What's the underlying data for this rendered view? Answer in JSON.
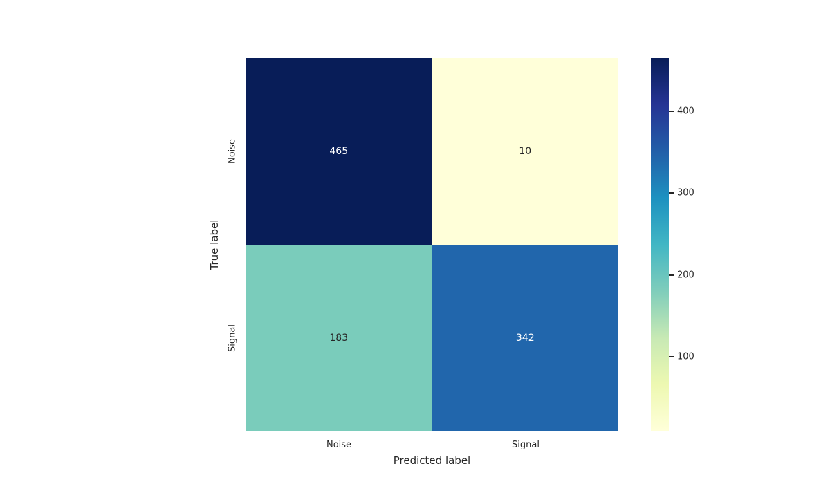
{
  "chart_data": {
    "type": "heatmap",
    "title": "",
    "xlabel": "Predicted label",
    "ylabel": "True label",
    "x_categories": [
      "Noise",
      "Signal"
    ],
    "y_categories": [
      "Noise",
      "Signal"
    ],
    "values": [
      [
        465,
        10
      ],
      [
        183,
        342
      ]
    ],
    "cells": [
      {
        "row": "Noise",
        "col": "Noise",
        "label": "465",
        "color": "#081d58",
        "text_color": "#ffffff"
      },
      {
        "row": "Noise",
        "col": "Signal",
        "label": "10",
        "color": "#ffffd9",
        "text_color": "#262626"
      },
      {
        "row": "Signal",
        "col": "Noise",
        "label": "183",
        "color": "#7accbb",
        "text_color": "#262626"
      },
      {
        "row": "Signal",
        "col": "Signal",
        "label": "342",
        "color": "#2166ac",
        "text_color": "#ffffff"
      }
    ],
    "colormap": "YlGnBu",
    "colormap_stops": [
      "#ffffd9",
      "#edf8b1",
      "#c7e9b4",
      "#7fcdbb",
      "#41b6c4",
      "#1d91c0",
      "#225ea8",
      "#253494",
      "#081d58"
    ],
    "colorbar": {
      "vmin": 10,
      "vmax": 465,
      "tick_labels": [
        "100",
        "200",
        "300",
        "400"
      ],
      "ticks": [
        100,
        200,
        300,
        400
      ],
      "position": "right"
    },
    "grid": false,
    "legend": false,
    "background_color": "#ffffff",
    "tick_label_color": "#262626"
  }
}
